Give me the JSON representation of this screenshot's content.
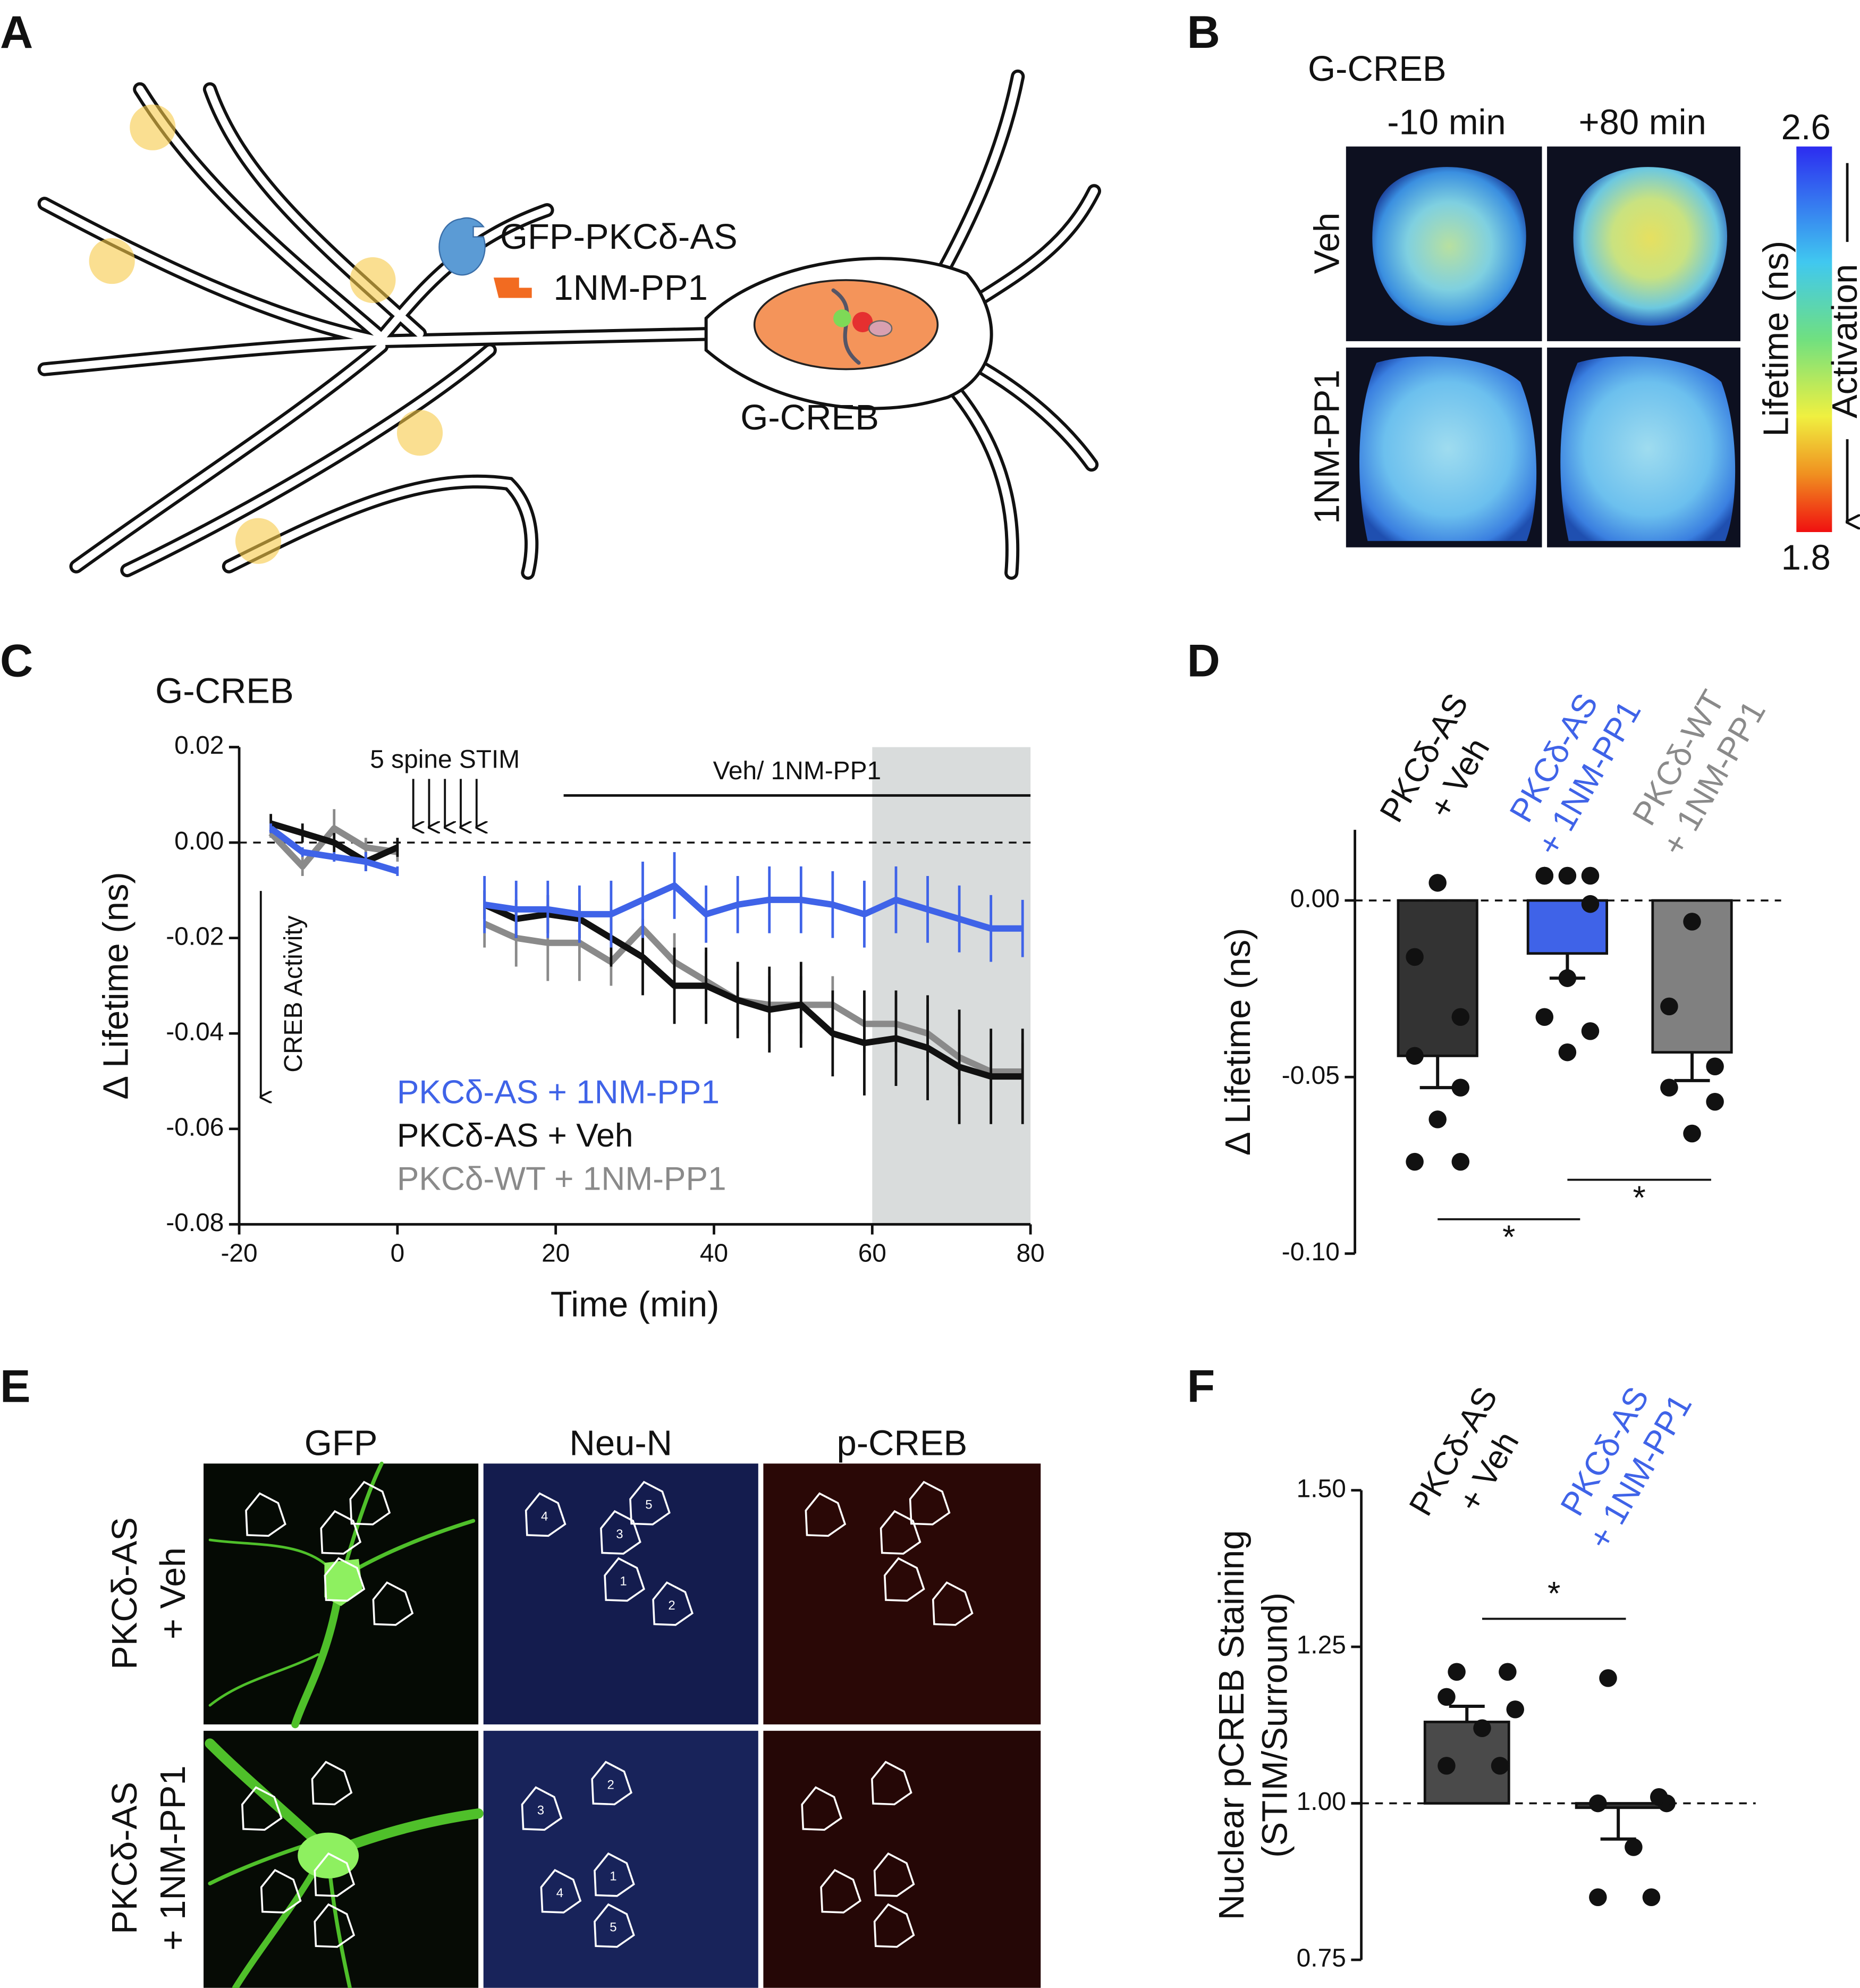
{
  "panel_labels": [
    "A",
    "B",
    "C",
    "D",
    "E",
    "F"
  ],
  "panel_a": {
    "labels": [
      "GFP-PKCδ-AS",
      "1NM-PP1",
      "G-CREB"
    ]
  },
  "panel_b": {
    "title": "G-CREB",
    "columns": [
      "-10 min",
      "+80 min"
    ],
    "rows": [
      "Veh",
      "1NM-PP1"
    ],
    "colorbar_label": "Lifetime (ns)",
    "arrow_label": "Activation",
    "colorbar_max": 2.6,
    "colorbar_min": 1.8
  },
  "panel_e": {
    "columns": [
      "GFP",
      "Neu-N",
      "p-CREB"
    ],
    "rows": [
      [
        "PKCδ-AS",
        "+ Veh"
      ],
      [
        "PKCδ-AS",
        "+ 1NM-PP1"
      ]
    ],
    "roi_labels": [
      [
        "4",
        "3",
        "5",
        "1",
        "2"
      ],
      [
        "2",
        "3",
        "1",
        "4",
        "5"
      ]
    ]
  },
  "chart_data": [
    {
      "type": "line",
      "title": "G-CREB",
      "xlabel": "Time (min)",
      "ylabel": "Δ Lifetime (ns)",
      "x": [
        -16,
        -12,
        -8,
        -4,
        0,
        null,
        11,
        15,
        19,
        23,
        27,
        31,
        35,
        39,
        43,
        47,
        51,
        55,
        59,
        63,
        67,
        71,
        75,
        79
      ],
      "series": [
        {
          "name": "PKCδ-AS + 1NM-PP1",
          "color": "#3f63e8",
          "values": [
            0.003,
            -0.002,
            -0.003,
            -0.004,
            -0.006,
            null,
            -0.013,
            -0.014,
            -0.014,
            -0.015,
            -0.015,
            -0.012,
            -0.009,
            -0.015,
            -0.013,
            -0.012,
            -0.012,
            -0.013,
            -0.015,
            -0.012,
            -0.014,
            -0.016,
            -0.018,
            -0.018
          ],
          "errors": [
            0.001,
            0.001,
            0.001,
            0.002,
            0.001,
            null,
            0.006,
            0.006,
            0.006,
            0.006,
            0.007,
            0.008,
            0.007,
            0.006,
            0.006,
            0.007,
            0.007,
            0.007,
            0.007,
            0.007,
            0.007,
            0.007,
            0.007,
            0.006
          ]
        },
        {
          "name": "PKCδ-AS + Veh",
          "color": "#111111",
          "values": [
            0.004,
            0.002,
            0,
            -0.004,
            -0.001,
            null,
            -0.013,
            -0.016,
            -0.015,
            -0.016,
            -0.02,
            -0.024,
            -0.03,
            -0.03,
            -0.033,
            -0.035,
            -0.034,
            -0.04,
            -0.042,
            -0.041,
            -0.043,
            -0.047,
            -0.049,
            -0.049
          ],
          "errors": [
            0.002,
            0.002,
            0.002,
            0.002,
            0.002,
            null,
            0.003,
            0.004,
            0.004,
            0.004,
            0.006,
            0.008,
            0.008,
            0.008,
            0.008,
            0.009,
            0.009,
            0.009,
            0.011,
            0.01,
            0.011,
            0.012,
            0.01,
            0.01
          ]
        },
        {
          "name": "PKCδ-WT + 1NM-PP1",
          "color": "#8a8a8a",
          "values": [
            0.002,
            -0.005,
            0.003,
            -0.001,
            -0.002,
            null,
            -0.017,
            -0.02,
            -0.021,
            -0.021,
            -0.025,
            -0.018,
            -0.025,
            -0.029,
            -0.033,
            -0.034,
            -0.034,
            -0.034,
            -0.038,
            -0.038,
            -0.04,
            -0.045,
            -0.048,
            -0.048
          ],
          "errors": [
            0.001,
            0.002,
            0.004,
            0.002,
            0.002,
            null,
            0.005,
            0.006,
            0.008,
            0.008,
            0.005,
            0.006,
            0.006,
            0.006,
            0.006,
            0.006,
            0.006,
            0.006,
            0.006,
            0.006,
            0.006,
            0.006,
            0.006,
            0.006
          ]
        }
      ],
      "xlim": [
        -20,
        80
      ],
      "xticks": [
        -20,
        0,
        20,
        40,
        60,
        80
      ],
      "ylim": [
        -0.08,
        0.02
      ],
      "yticks": [
        0.02,
        {
          "value": 0,
          "label": "0.00"
        },
        -0.02,
        -0.04,
        -0.06,
        -0.08
      ],
      "reference_line": 0,
      "shaded_x": [
        60,
        80
      ],
      "stim_label": "5 spine STIM",
      "stim_x": [
        2,
        4,
        6,
        8,
        10
      ],
      "treatment_label": "Veh/ 1NM-PP1",
      "treatment_x": [
        21,
        80
      ],
      "arrow_label": "CREB Activity"
    },
    {
      "type": "bar",
      "ylabel": "Δ Lifetime (ns)",
      "categories": [
        [
          "PKCδ-AS",
          "+ Veh"
        ],
        [
          "PKCδ-AS",
          "+ 1NM-PP1"
        ],
        [
          "PKCδ-WT",
          "+ 1NM-PP1"
        ]
      ],
      "colors": [
        "#333333",
        "#3f63e8",
        "#808080"
      ],
      "label_colors": [
        "#111111",
        "#3f63e8",
        "#8a8a8a"
      ],
      "values": [
        -0.044,
        -0.015,
        -0.043
      ],
      "errors": [
        0.009,
        0.007,
        0.008
      ],
      "points": [
        [
          0.005,
          -0.016,
          -0.033,
          -0.044,
          -0.053,
          -0.062,
          -0.074,
          -0.074
        ],
        [
          0.007,
          0.007,
          0.007,
          0.007,
          -0.001,
          -0.022,
          -0.033,
          -0.037,
          -0.043
        ],
        [
          -0.006,
          -0.03,
          -0.047,
          -0.053,
          -0.057,
          -0.066
        ]
      ],
      "baseline": 0,
      "reference_line": 0,
      "ylim": [
        -0.1,
        0.02
      ],
      "yticks": [
        {
          "value": 0,
          "label": "0.00"
        },
        -0.05,
        {
          "value": -0.1,
          "label": "-0.10"
        }
      ],
      "significance": [
        {
          "pair": [
            0,
            1
          ],
          "label": "*"
        },
        {
          "pair": [
            1,
            2
          ],
          "label": "*"
        }
      ]
    },
    {
      "type": "bar",
      "ylabel": [
        "Nuclear pCREB Staining",
        "(STIM/Surround)"
      ],
      "categories": [
        [
          "PKCδ-AS",
          "+ Veh"
        ],
        [
          "PKCδ-AS",
          "+ 1NM-PP1"
        ]
      ],
      "colors": [
        "#4a4a4a",
        "#333333"
      ],
      "label_colors": [
        "#111111",
        "#3f63e8"
      ],
      "values": [
        1.13,
        0.993
      ],
      "errors": [
        0.025,
        0.05
      ],
      "points": [
        [
          1.21,
          1.21,
          1.17,
          1.15,
          1.12,
          1.06,
          1.06
        ],
        [
          1.2,
          1.01,
          1,
          1,
          0.93,
          0.85,
          0.85
        ]
      ],
      "baseline": 1,
      "reference_line": 1,
      "ylim": [
        0.75,
        1.5
      ],
      "yticks": [
        0.75,
        {
          "value": 1,
          "label": "1.00"
        },
        1.25,
        {
          "value": 1.5,
          "label": "1.50"
        }
      ],
      "significance": [
        {
          "pair": [
            0,
            1
          ],
          "label": "*"
        }
      ]
    }
  ]
}
